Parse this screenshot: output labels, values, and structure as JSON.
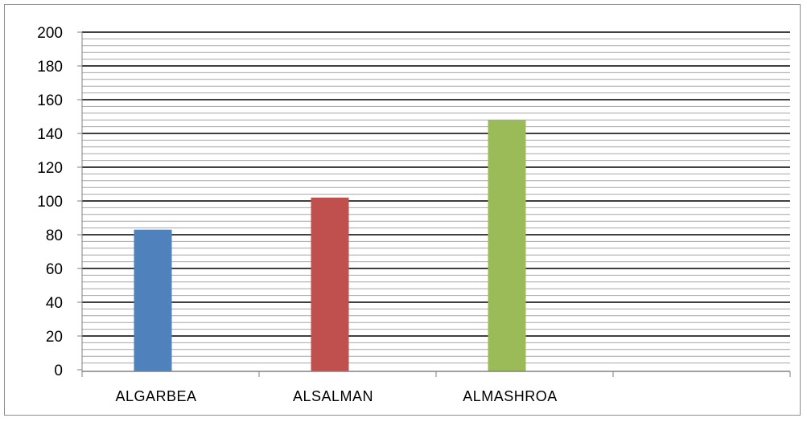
{
  "chart_data": {
    "type": "bar",
    "categories": [
      "ALGARBEA",
      "ALSALMAN",
      "ALMASHROA"
    ],
    "values": [
      83,
      102,
      148
    ],
    "colors": [
      "#4f81bd",
      "#c0504d",
      "#9bbb59"
    ],
    "ylim": [
      0,
      200
    ],
    "yticks": [
      0,
      20,
      40,
      60,
      80,
      100,
      120,
      140,
      160,
      180,
      200
    ],
    "title": "",
    "xlabel": "",
    "ylabel": "",
    "grid": true,
    "legend": "none"
  }
}
